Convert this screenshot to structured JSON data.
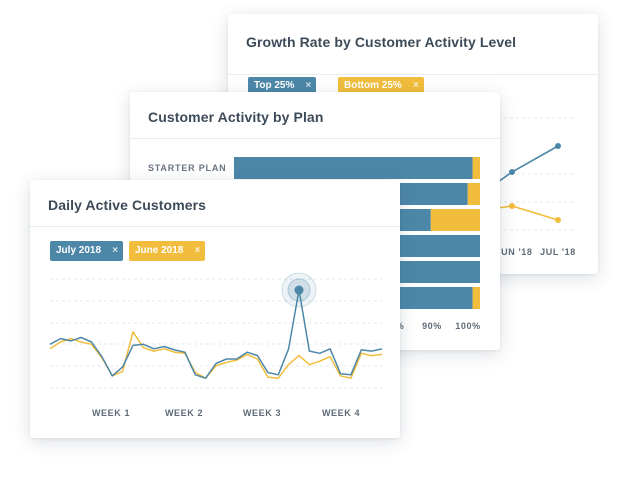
{
  "growth_card": {
    "title": "Growth Rate by Customer Activity Level",
    "chips": [
      {
        "label": "Top 25%",
        "color": "#4d87a8"
      },
      {
        "label": "Bottom 25%",
        "color": "#f2bd3c"
      }
    ],
    "x_labels": [
      "JUN '18",
      "JUL '18"
    ]
  },
  "plan_card": {
    "title": "Customer Activity by Plan",
    "row_label": "STARTER PLAN",
    "x_ticks": [
      "%",
      "90%",
      "100%"
    ]
  },
  "daily_card": {
    "title": "Daily Active Customers",
    "chips": [
      {
        "label": "July 2018",
        "color": "#4d87a8"
      },
      {
        "label": "June 2018",
        "color": "#f2bd3c"
      }
    ],
    "week_labels": [
      "WEEK 1",
      "WEEK 2",
      "WEEK 3",
      "WEEK 4"
    ]
  },
  "close_glyph": "×",
  "colors": {
    "blue": "#4d87a8",
    "yellow": "#f2bd3c"
  },
  "chart_data": [
    {
      "type": "line",
      "title": "Growth Rate by Customer Activity Level",
      "categories": [
        "JUN '18",
        "JUL '18"
      ],
      "series": [
        {
          "name": "Top 25%",
          "values": [
            2,
            4
          ]
        },
        {
          "name": "Bottom 25%",
          "values": [
            -2,
            -2.6
          ]
        }
      ]
    },
    {
      "type": "bar",
      "title": "Customer Activity by Plan",
      "stacked": true,
      "orientation": "horizontal",
      "categories": [
        "STARTER PLAN",
        "",
        "",
        "",
        "",
        ""
      ],
      "series": [
        {
          "name": "",
          "values": [
            97,
            95,
            80,
            100,
            100,
            97
          ]
        },
        {
          "name": "",
          "values": [
            3,
            5,
            20,
            0,
            0,
            3
          ]
        }
      ]
    },
    {
      "type": "line",
      "title": "Daily Active Customers",
      "x_labels": [
        "WEEK 1",
        "WEEK 2",
        "WEEK 3",
        "WEEK 4"
      ],
      "series": [
        {
          "name": "July 2018",
          "values": [
            44,
            49,
            47,
            50,
            46,
            33,
            16,
            24,
            43,
            44,
            40,
            42,
            39,
            37,
            17,
            14,
            27,
            31,
            31,
            37,
            34,
            19,
            17,
            40,
            92,
            38,
            36,
            40,
            18,
            17,
            39,
            38,
            40
          ]
        },
        {
          "name": "June 2018",
          "values": [
            40,
            46,
            49,
            46,
            44,
            32,
            16,
            20,
            55,
            41,
            38,
            40,
            37,
            36,
            19,
            14,
            25,
            28,
            30,
            35,
            31,
            15,
            14,
            26,
            34,
            26,
            29,
            33,
            16,
            14,
            36,
            34,
            35
          ]
        }
      ]
    }
  ]
}
